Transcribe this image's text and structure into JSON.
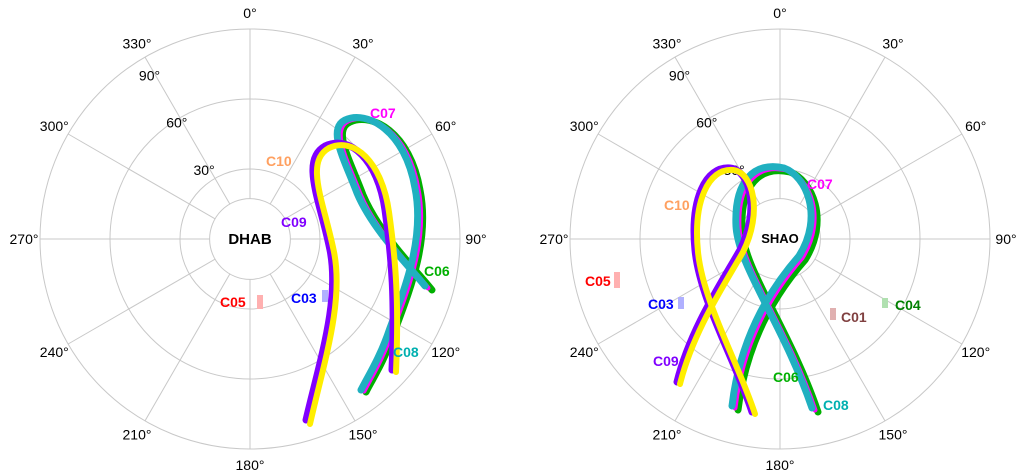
{
  "chart_data": [
    {
      "type": "polar-skyplot",
      "station": "DHAB",
      "azimuth_labels": [
        "0°",
        "30°",
        "60°",
        "90°",
        "120°",
        "150°",
        "180°",
        "210°",
        "240°",
        "270°",
        "300°",
        "330°"
      ],
      "elevation_labels": [
        "30°",
        "60°",
        "90°"
      ],
      "satellites": [
        {
          "name": "C07",
          "color": "#ff00ff"
        },
        {
          "name": "C10",
          "color": "#ffa060"
        },
        {
          "name": "C09",
          "color": "#8000ff"
        },
        {
          "name": "C06",
          "color": "#00b000"
        },
        {
          "name": "C05",
          "color": "#ff0000"
        },
        {
          "name": "C03",
          "color": "#0000ff"
        },
        {
          "name": "C08",
          "color": "#00b0b0"
        }
      ]
    },
    {
      "type": "polar-skyplot",
      "station": "SHAO",
      "azimuth_labels": [
        "0°",
        "30°",
        "60°",
        "90°",
        "120°",
        "150°",
        "180°",
        "210°",
        "240°",
        "270°",
        "300°",
        "330°"
      ],
      "elevation_labels": [
        "30°",
        "60°",
        "90°"
      ],
      "satellites": [
        {
          "name": "C07",
          "color": "#ff00ff"
        },
        {
          "name": "C10",
          "color": "#ffa060"
        },
        {
          "name": "C05",
          "color": "#ff0000"
        },
        {
          "name": "C03",
          "color": "#0000ff"
        },
        {
          "name": "C01",
          "color": "#804040"
        },
        {
          "name": "C04",
          "color": "#008000"
        },
        {
          "name": "C09",
          "color": "#8000ff"
        },
        {
          "name": "C06",
          "color": "#00b000"
        },
        {
          "name": "C08",
          "color": "#00b0b0"
        }
      ]
    }
  ]
}
